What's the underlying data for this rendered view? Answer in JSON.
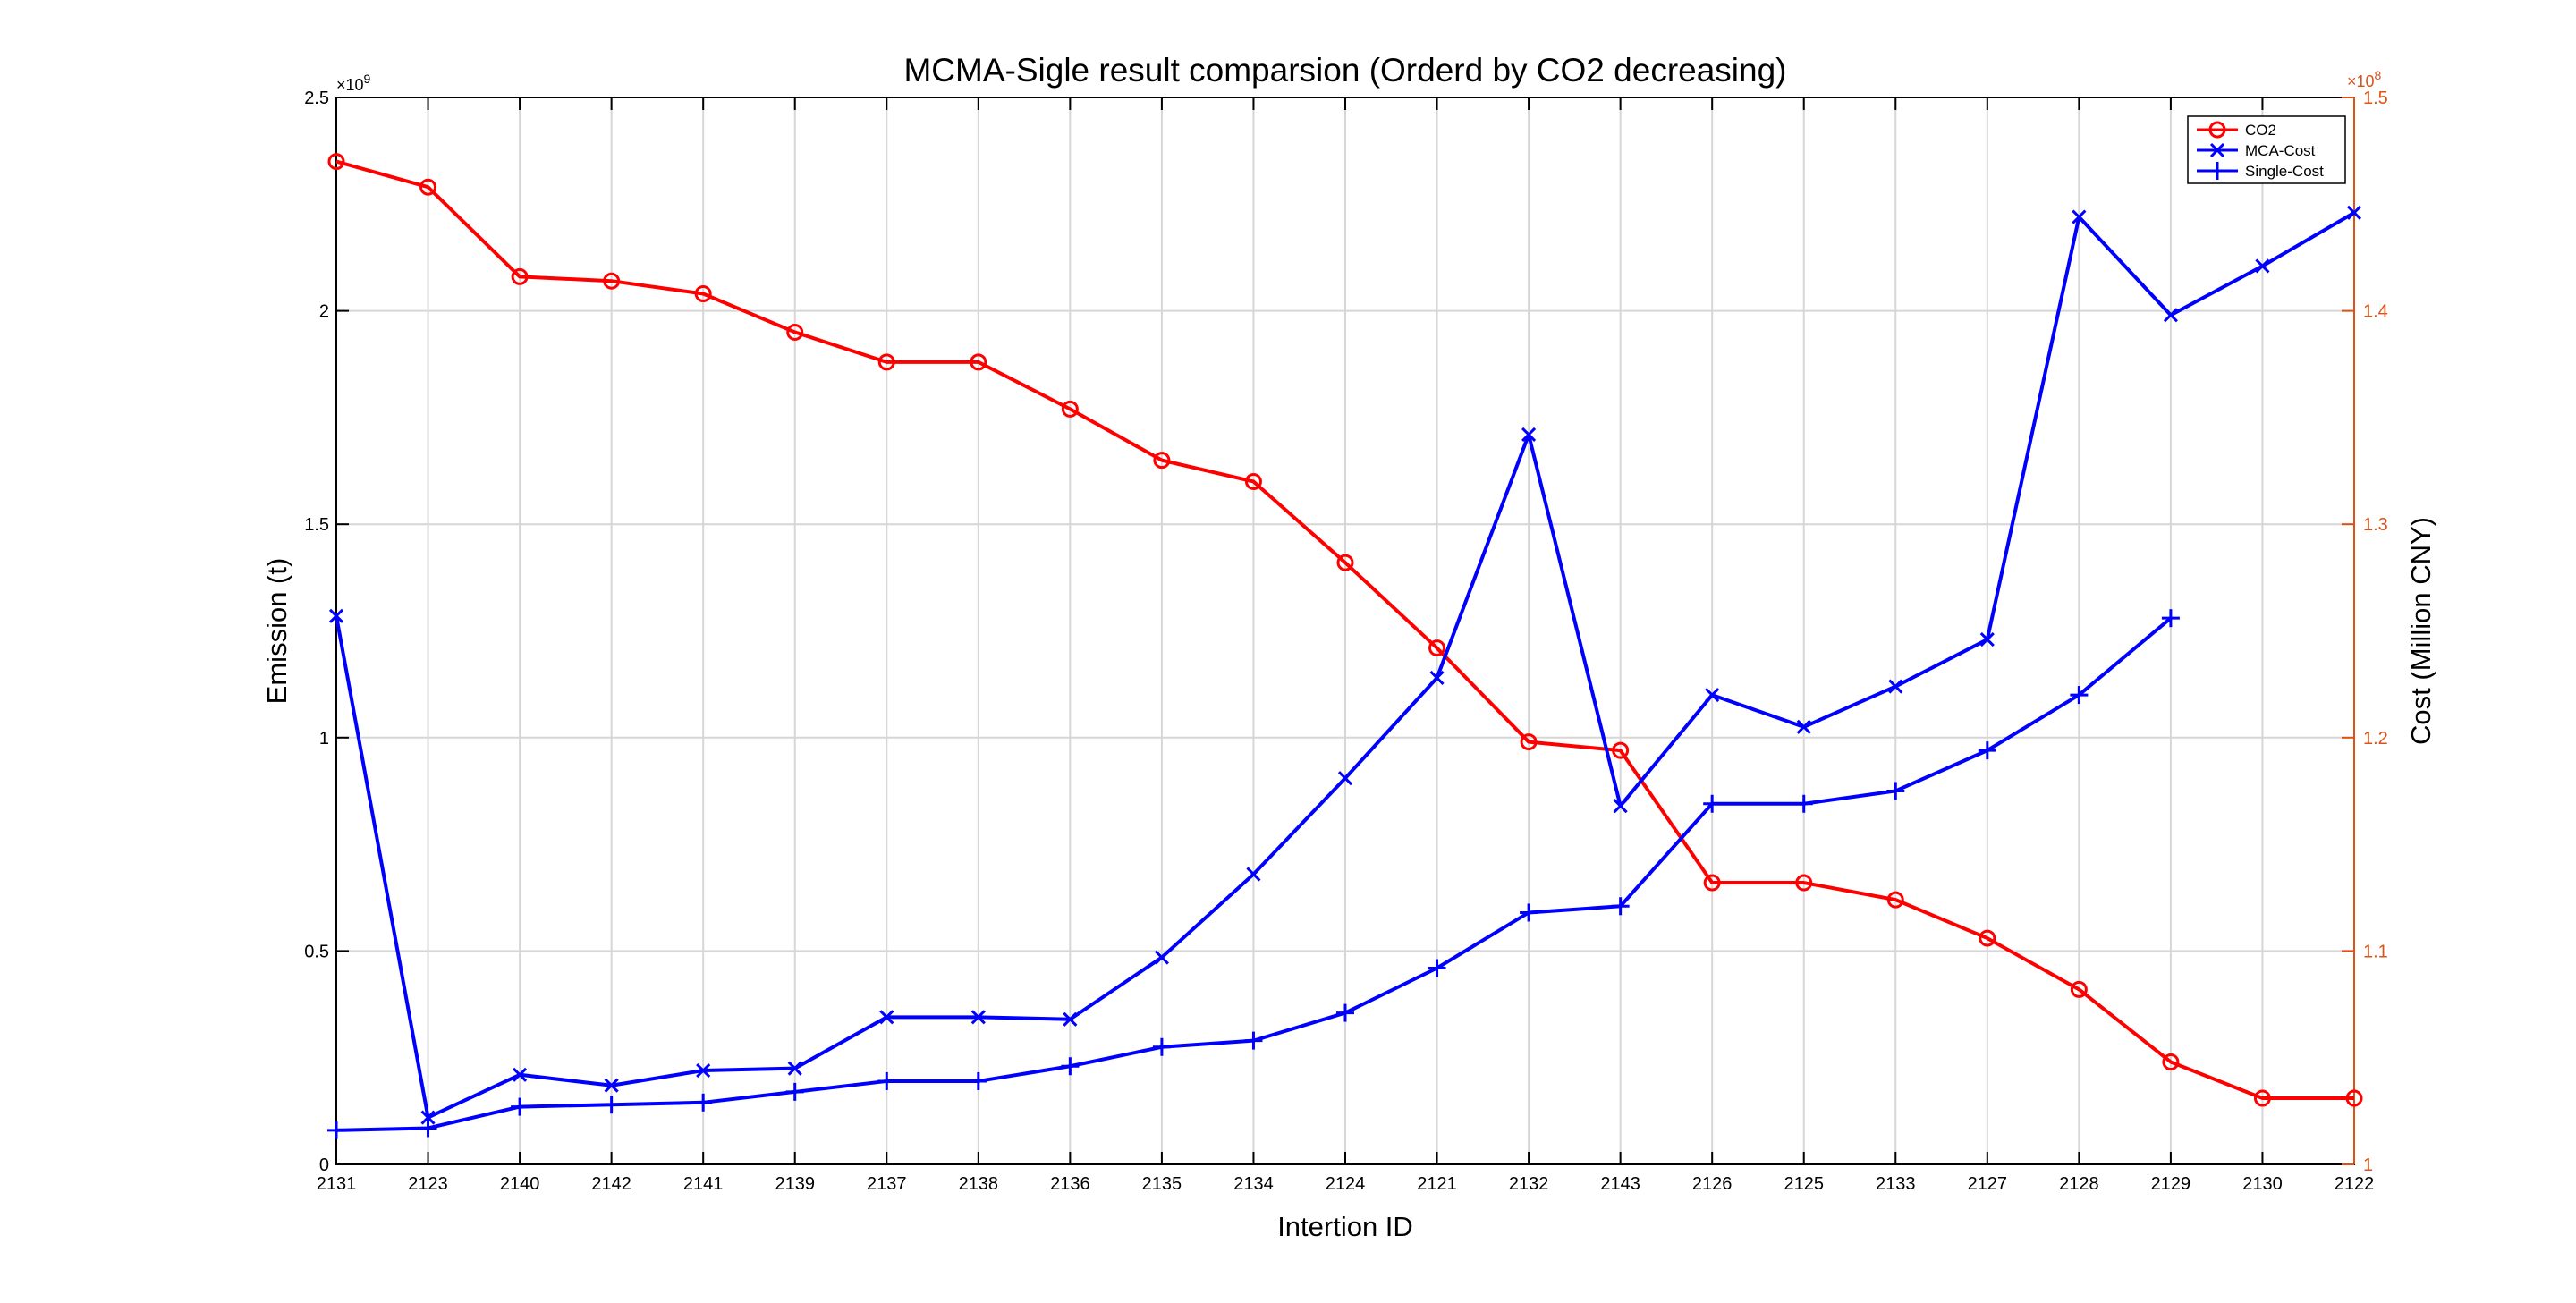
{
  "chart_data": {
    "type": "line",
    "title": "MCMA-Sigle result comparsion (Orderd by CO2 decreasing)",
    "xlabel": "Intertion ID",
    "ylabel_left": "Emission (t)",
    "ylabel_right": "Cost (Million CNY)",
    "categories": [
      "2131",
      "2123",
      "2140",
      "2142",
      "2141",
      "2139",
      "2137",
      "2138",
      "2136",
      "2135",
      "2134",
      "2124",
      "2121",
      "2132",
      "2143",
      "2126",
      "2125",
      "2133",
      "2127",
      "2128",
      "2129",
      "2130",
      "2122"
    ],
    "y_left": {
      "range": [
        0,
        2.5
      ],
      "multiplier_label": "×10",
      "multiplier_exponent": "9",
      "ticks": [
        "0",
        "0.5",
        "1",
        "1.5",
        "2",
        "2.5"
      ],
      "tick_values": [
        0,
        0.5,
        1,
        1.5,
        2,
        2.5
      ]
    },
    "y_right": {
      "range": [
        1,
        1.5
      ],
      "multiplier_label": "×10",
      "multiplier_exponent": "8",
      "ticks": [
        "1",
        "1.1",
        "1.2",
        "1.3",
        "1.4",
        "1.5"
      ],
      "tick_values": [
        1,
        1.1,
        1.2,
        1.3,
        1.4,
        1.5
      ],
      "color": "#D95319"
    },
    "grid": true,
    "legend_position": "top-right",
    "series": [
      {
        "name": "CO2",
        "axis": "left",
        "color": "#FF0000",
        "marker": "circle",
        "values": [
          2.35,
          2.29,
          2.08,
          2.07,
          2.04,
          1.95,
          1.88,
          1.88,
          1.77,
          1.65,
          1.6,
          1.41,
          1.21,
          0.99,
          0.97,
          0.66,
          0.66,
          0.62,
          0.53,
          0.41,
          0.24,
          0.155,
          0.155
        ]
      },
      {
        "name": "MCA-Cost",
        "axis": "right",
        "color": "#0000FF",
        "marker": "x",
        "values": [
          1.257,
          1.022,
          1.042,
          1.037,
          1.044,
          1.045,
          1.069,
          1.069,
          1.068,
          1.097,
          1.136,
          1.181,
          1.228,
          1.342,
          1.168,
          1.22,
          1.205,
          1.224,
          1.246,
          1.444,
          1.398,
          1.421,
          1.446
        ]
      },
      {
        "name": "Single-Cost",
        "axis": "right",
        "color": "#0000FF",
        "marker": "plus",
        "values": [
          1.016,
          1.017,
          1.027,
          1.028,
          1.029,
          1.034,
          1.039,
          1.039,
          1.046,
          1.055,
          1.058,
          1.071,
          1.092,
          1.118,
          1.121,
          1.169,
          1.169,
          1.175,
          1.194,
          1.22,
          1.256,
          null,
          null
        ]
      }
    ]
  }
}
